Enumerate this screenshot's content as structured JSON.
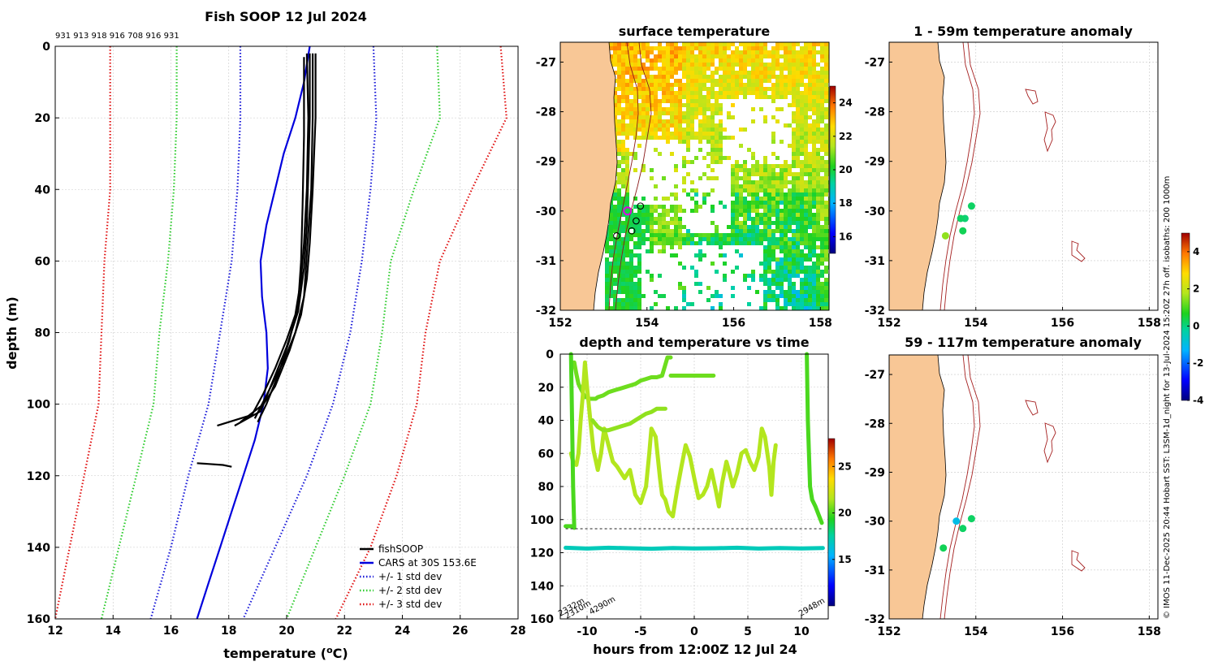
{
  "chart_data": [
    {
      "type": "line",
      "title": "Fish SOOP 12 Jul 2024",
      "top_counts": "931 913 918 916 708 916 931",
      "xlabel": "temperature (°C)",
      "ylabel": "depth (m)",
      "xlim": [
        12,
        28
      ],
      "ylim": [
        160,
        0
      ],
      "xticks": [
        12,
        14,
        16,
        18,
        20,
        22,
        24,
        26,
        28
      ],
      "yticks": [
        0,
        20,
        40,
        60,
        80,
        100,
        120,
        140,
        160
      ],
      "legend": [
        "fishSOOP",
        "CARS at 30S 153.6E",
        "+/- 1 std dev",
        "+/- 2 std dev",
        "+/- 3 std dev"
      ],
      "legend_position": "bottom-right",
      "colors": {
        "fish": "#000000",
        "cars": "#0000dd",
        "sd1": "#1a1ad8",
        "sd2": "#2ecc2e",
        "sd3": "#e01010"
      },
      "cars": {
        "depth": [
          0,
          10,
          20,
          30,
          40,
          50,
          60,
          70,
          80,
          90,
          100,
          110,
          120,
          130,
          140,
          150,
          160
        ],
        "temp": [
          20.8,
          20.6,
          20.3,
          19.9,
          19.6,
          19.3,
          19.1,
          19.15,
          19.3,
          19.35,
          19.2,
          18.9,
          18.5,
          18.1,
          17.7,
          17.3,
          16.9
        ]
      },
      "sd1_low": {
        "depth": [
          0,
          20,
          40,
          60,
          80,
          100,
          120,
          140,
          160
        ],
        "temp": [
          18.4,
          18.4,
          18.3,
          18.1,
          17.7,
          17.3,
          16.6,
          16.0,
          15.3
        ]
      },
      "sd1_high": {
        "depth": [
          0,
          20,
          40,
          60,
          80,
          100,
          120,
          140,
          160
        ],
        "temp": [
          23.0,
          23.1,
          22.9,
          22.6,
          22.2,
          21.6,
          20.7,
          19.6,
          18.5
        ]
      },
      "sd2_low": {
        "depth": [
          0,
          20,
          40,
          60,
          80,
          100,
          120,
          140,
          160
        ],
        "temp": [
          16.2,
          16.2,
          16.1,
          15.9,
          15.6,
          15.4,
          14.8,
          14.2,
          13.6
        ]
      },
      "sd2_high": {
        "depth": [
          0,
          20,
          40,
          60,
          80,
          100,
          120,
          140,
          160
        ],
        "temp": [
          25.2,
          25.3,
          24.4,
          23.6,
          23.3,
          22.9,
          22.0,
          21.0,
          20.0
        ]
      },
      "sd3_low": {
        "depth": [
          0,
          20,
          40,
          60,
          80,
          100,
          120,
          140,
          160
        ],
        "temp": [
          13.9,
          13.9,
          13.9,
          13.7,
          13.6,
          13.5,
          13.0,
          12.5,
          12.0
        ]
      },
      "sd3_high": {
        "depth": [
          0,
          20,
          40,
          60,
          80,
          100,
          120,
          140,
          160
        ],
        "temp": [
          27.4,
          27.6,
          26.4,
          25.3,
          24.8,
          24.5,
          23.8,
          22.9,
          21.7
        ]
      },
      "fish_profiles": [
        {
          "depth": [
            2,
            20,
            40,
            55,
            65,
            75,
            82,
            90,
            97,
            103,
            106
          ],
          "temp": [
            20.7,
            20.75,
            20.7,
            20.6,
            20.5,
            20.3,
            20.0,
            19.6,
            19.2,
            18.8,
            17.6
          ]
        },
        {
          "depth": [
            2,
            20,
            40,
            55,
            65,
            75,
            85,
            95,
            100,
            105
          ],
          "temp": [
            21.0,
            21.0,
            20.9,
            20.8,
            20.7,
            20.5,
            20.1,
            19.6,
            19.2,
            18.4
          ]
        },
        {
          "depth": [
            2,
            20,
            40,
            58,
            70,
            80,
            88,
            96,
            104
          ],
          "temp": [
            20.9,
            20.9,
            20.85,
            20.7,
            20.6,
            20.3,
            19.9,
            19.4,
            18.9
          ]
        },
        {
          "depth": [
            3,
            25,
            45,
            60,
            72,
            82,
            92,
            100,
            105
          ],
          "temp": [
            20.6,
            20.6,
            20.55,
            20.5,
            20.4,
            20.1,
            19.7,
            19.3,
            19.0
          ]
        },
        {
          "depth": [
            2,
            20,
            35,
            50,
            62,
            74,
            84,
            94,
            102,
            106
          ],
          "temp": [
            20.8,
            20.8,
            20.75,
            20.7,
            20.6,
            20.4,
            20.0,
            19.5,
            19.1,
            18.2
          ]
        },
        {
          "depth": [
            116.5,
            117,
            117.5
          ],
          "temp": [
            16.9,
            17.8,
            18.1
          ]
        }
      ]
    },
    {
      "type": "heatmap",
      "title": "surface temperature",
      "xlim": [
        152,
        158.2
      ],
      "ylim": [
        -32,
        -26.6
      ],
      "xticks": [
        152,
        154,
        156,
        158
      ],
      "yticks": [
        -27,
        -28,
        -29,
        -30,
        -31,
        -32
      ],
      "colorbar": {
        "min": 15,
        "max": 25,
        "ticks": [
          16,
          18,
          20,
          22,
          24
        ]
      },
      "markers": [
        {
          "lon": 153.55,
          "lat": -30.0,
          "style": "magenta-circle"
        },
        {
          "lon": 153.85,
          "lat": -29.9,
          "style": "black-circle"
        },
        {
          "lon": 153.75,
          "lat": -30.2,
          "style": "black-circle"
        },
        {
          "lon": 153.65,
          "lat": -30.4,
          "style": "black-circle"
        },
        {
          "lon": 153.3,
          "lat": -30.5,
          "style": "black-circle"
        }
      ]
    },
    {
      "type": "scatter",
      "title": "depth and temperature vs time",
      "xlabel": "hours from 12:00Z 12 Jul 24",
      "ylabel": "",
      "xlim": [
        -12.5,
        12.5
      ],
      "ylim": [
        160,
        0
      ],
      "xticks": [
        -10,
        -5,
        0,
        5,
        10
      ],
      "yticks": [
        0,
        20,
        40,
        60,
        80,
        100,
        120,
        140,
        160
      ],
      "colorbar": {
        "min": 10,
        "max": 28,
        "ticks": [
          15,
          20,
          25
        ]
      },
      "annotations": [
        "2332m",
        "2310m",
        "4290m",
        "2948m"
      ],
      "traces": [
        {
          "temp": 20.5,
          "t": [
            -11.2,
            -11,
            -10.8,
            -10.5,
            -10.2,
            -10,
            -9.8,
            -9.5,
            -9.2,
            -9,
            -8.5,
            -8,
            -7.5,
            -7,
            -6.5,
            -6,
            -5.5,
            -5,
            -4.5,
            -4,
            -3.5,
            -3,
            -2.5,
            -2.2
          ],
          "d": [
            5,
            12,
            18,
            22,
            26,
            26,
            27,
            27,
            27,
            26,
            25,
            23,
            22,
            21,
            20,
            19,
            18,
            16,
            15,
            14,
            14,
            13,
            2,
            2
          ]
        },
        {
          "temp": 20.5,
          "t": [
            -2.2,
            -2,
            -1,
            0,
            1,
            1.8
          ],
          "d": [
            13,
            13,
            13,
            13,
            13,
            13
          ]
        },
        {
          "temp": 21.5,
          "t": [
            -11.5,
            -11.3,
            -11,
            -10.8,
            -10.6,
            -10.4,
            -10.2,
            -10,
            -9.7,
            -9.4,
            -9,
            -8.7,
            -8.4,
            -8,
            -7.6,
            -7.2,
            -6.8,
            -6.5,
            -6,
            -5.5,
            -5,
            -4.5,
            -4.2,
            -4,
            -3.6,
            -3.2,
            -3,
            -2.7,
            -2.4,
            -2,
            -1.6,
            -1.2,
            -0.8,
            -0.4,
            0,
            0.4,
            0.8,
            1.2,
            1.6,
            2,
            2.3,
            2.6,
            3,
            3.3,
            3.6,
            4,
            4.4,
            4.8,
            5.2,
            5.6,
            6,
            6.3,
            6.6,
            7,
            7.2,
            7.4,
            7.6
          ],
          "d": [
            60,
            65,
            67,
            60,
            40,
            25,
            5,
            20,
            40,
            58,
            70,
            60,
            45,
            55,
            65,
            68,
            72,
            75,
            70,
            85,
            90,
            80,
            60,
            45,
            50,
            75,
            85,
            88,
            95,
            98,
            82,
            68,
            55,
            62,
            75,
            87,
            85,
            80,
            70,
            82,
            92,
            78,
            65,
            72,
            80,
            72,
            60,
            58,
            65,
            70,
            62,
            45,
            50,
            68,
            85,
            65,
            55
          ]
        },
        {
          "temp": 21.0,
          "t": [
            -9.5,
            -9,
            -8.5,
            -8,
            -7.5,
            -7,
            -6.5,
            -6,
            -5.5,
            -5,
            -4.5,
            -4,
            -3.5,
            -3,
            -2.7
          ],
          "d": [
            40,
            44,
            46,
            46,
            45,
            44,
            43,
            42,
            40,
            38,
            36,
            35,
            33,
            33,
            33
          ]
        },
        {
          "temp": 20.0,
          "t": [
            -12,
            -11.5,
            -11.3
          ],
          "d": [
            104,
            104,
            104
          ]
        },
        {
          "temp": 20.0,
          "t": [
            -11.5,
            -11.4,
            -11.3,
            -11.2
          ],
          "d": [
            0,
            40,
            80,
            105
          ]
        },
        {
          "temp": 20.0,
          "t": [
            10.5,
            10.6,
            10.8,
            11,
            11.3,
            11.6,
            11.9
          ],
          "d": [
            0,
            40,
            80,
            88,
            92,
            97,
            102
          ]
        },
        {
          "temp": 17.0,
          "t": [
            -12,
            -10,
            -8,
            -6,
            -4,
            -2,
            0,
            2,
            4,
            6,
            8,
            10,
            12
          ],
          "d": [
            117,
            117.5,
            117,
            117.3,
            117.6,
            117.2,
            117.4,
            117.3,
            117,
            117.5,
            117.2,
            117.4,
            117.2
          ]
        }
      ]
    },
    {
      "type": "heatmap",
      "title": "1 - 59m temperature anomaly",
      "xlim": [
        152,
        158.2
      ],
      "ylim": [
        -32,
        -26.6
      ],
      "xticks": [
        152,
        154,
        156,
        158
      ],
      "yticks": [
        -27,
        -28,
        -29,
        -30,
        -31,
        -32
      ],
      "points": [
        {
          "lon": 153.9,
          "lat": -29.9,
          "anom": 0.2
        },
        {
          "lon": 153.75,
          "lat": -30.15,
          "anom": 0.1
        },
        {
          "lon": 153.65,
          "lat": -30.15,
          "anom": 0.2
        },
        {
          "lon": 153.7,
          "lat": -30.4,
          "anom": 0.3
        },
        {
          "lon": 153.3,
          "lat": -30.5,
          "anom": 1.5
        }
      ]
    },
    {
      "type": "heatmap",
      "title": "59 - 117m temperature anomaly",
      "xlim": [
        152,
        158.2
      ],
      "ylim": [
        -32,
        -26.6
      ],
      "xticks": [
        152,
        154,
        156,
        158
      ],
      "yticks": [
        -27,
        -28,
        -29,
        -30,
        -31,
        -32
      ],
      "colorbar": {
        "min": -4,
        "max": 5,
        "ticks": [
          -4,
          -2,
          0,
          2,
          4
        ]
      },
      "points": [
        {
          "lon": 153.9,
          "lat": -29.95,
          "anom": 0.2
        },
        {
          "lon": 153.55,
          "lat": -30.0,
          "anom": -1.0
        },
        {
          "lon": 153.7,
          "lat": -30.15,
          "anom": 0.2
        },
        {
          "lon": 153.25,
          "lat": -30.55,
          "anom": 0.3
        }
      ]
    }
  ],
  "side_caption": "© IMOS 11-Dec-2025 20:44 Hobart SST: L3SM-1d_night for 13-Jul-2024 15:20Z 27h off. isobaths: 200  1000m"
}
